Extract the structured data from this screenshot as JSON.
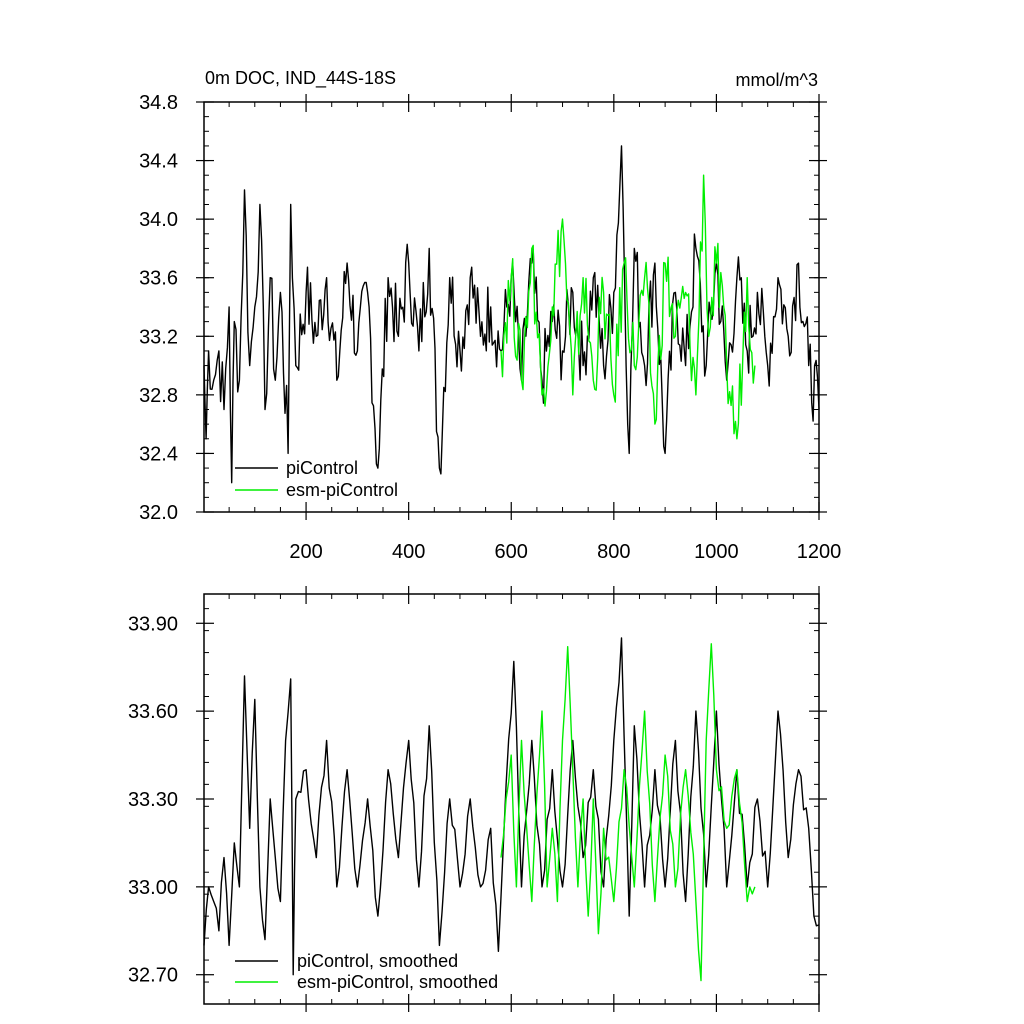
{
  "chart_data": [
    {
      "type": "line",
      "title": "0m DOC, IND_44S-18S",
      "units": "mmol/m^3",
      "xlim": [
        1,
        1200
      ],
      "ylim": [
        32.0,
        34.8
      ],
      "x_ticks": [
        200,
        400,
        600,
        800,
        1000,
        1200
      ],
      "y_ticks": [
        32.0,
        32.4,
        32.8,
        33.2,
        33.6,
        34.0,
        34.4,
        34.8
      ],
      "y_tick_labels": [
        "32.0",
        "32.4",
        "32.8",
        "33.2",
        "33.6",
        "34.0",
        "34.4",
        "34.8"
      ],
      "legend_position": "bottom-left",
      "series": [
        {
          "name": "piControl",
          "color": "#000000",
          "x_range": [
            1,
            1200
          ],
          "points": [
            [
              1,
              33.0
            ],
            [
              5,
              32.5
            ],
            [
              10,
              33.1
            ],
            [
              20,
              32.9
            ],
            [
              30,
              33.1
            ],
            [
              40,
              32.7
            ],
            [
              50,
              33.4
            ],
            [
              55,
              32.2
            ],
            [
              60,
              33.3
            ],
            [
              70,
              32.9
            ],
            [
              80,
              34.2
            ],
            [
              90,
              33.0
            ],
            [
              100,
              33.4
            ],
            [
              110,
              34.1
            ],
            [
              120,
              32.7
            ],
            [
              130,
              33.6
            ],
            [
              140,
              32.9
            ],
            [
              150,
              33.5
            ],
            [
              165,
              32.4
            ],
            [
              170,
              34.1
            ],
            [
              180,
              33.0
            ],
            [
              200,
              33.5
            ],
            [
              220,
              33.2
            ],
            [
              240,
              33.6
            ],
            [
              260,
              32.9
            ],
            [
              280,
              33.7
            ],
            [
              300,
              33.1
            ],
            [
              320,
              33.5
            ],
            [
              340,
              32.3
            ],
            [
              360,
              33.6
            ],
            [
              380,
              33.2
            ],
            [
              400,
              33.7
            ],
            [
              420,
              33.1
            ],
            [
              440,
              33.8
            ],
            [
              460,
              32.3
            ],
            [
              480,
              33.6
            ],
            [
              500,
              33.1
            ],
            [
              520,
              33.6
            ],
            [
              540,
              33.2
            ],
            [
              560,
              33.4
            ],
            [
              580,
              33.1
            ],
            [
              600,
              33.6
            ],
            [
              620,
              32.9
            ],
            [
              640,
              33.7
            ],
            [
              660,
              32.9
            ],
            [
              680,
              33.3
            ],
            [
              700,
              33.1
            ],
            [
              720,
              33.5
            ],
            [
              740,
              33.0
            ],
            [
              760,
              33.6
            ],
            [
              780,
              33.0
            ],
            [
              800,
              33.5
            ],
            [
              815,
              34.5
            ],
            [
              830,
              32.4
            ],
            [
              840,
              33.8
            ],
            [
              860,
              33.0
            ],
            [
              880,
              33.7
            ],
            [
              900,
              32.4
            ],
            [
              920,
              33.5
            ],
            [
              940,
              33.0
            ],
            [
              960,
              33.8
            ],
            [
              980,
              33.0
            ],
            [
              1000,
              33.7
            ],
            [
              1020,
              32.9
            ],
            [
              1040,
              33.6
            ],
            [
              1060,
              33.1
            ],
            [
              1080,
              33.5
            ],
            [
              1100,
              33.0
            ],
            [
              1120,
              33.6
            ],
            [
              1140,
              33.2
            ],
            [
              1160,
              33.7
            ],
            [
              1180,
              33.0
            ],
            [
              1200,
              32.7
            ]
          ]
        },
        {
          "name": "esm-piControl",
          "color": "#00ee00",
          "x_range": [
            580,
            1075
          ],
          "points": [
            [
              580,
              33.1
            ],
            [
              600,
              33.6
            ],
            [
              620,
              32.9
            ],
            [
              640,
              33.8
            ],
            [
              660,
              32.8
            ],
            [
              680,
              33.4
            ],
            [
              700,
              34.0
            ],
            [
              720,
              32.8
            ],
            [
              740,
              33.6
            ],
            [
              760,
              32.9
            ],
            [
              780,
              33.5
            ],
            [
              800,
              32.8
            ],
            [
              820,
              33.7
            ],
            [
              840,
              33.0
            ],
            [
              860,
              33.6
            ],
            [
              880,
              32.6
            ],
            [
              900,
              33.7
            ],
            [
              920,
              33.2
            ],
            [
              940,
              33.5
            ],
            [
              960,
              32.8
            ],
            [
              975,
              34.3
            ],
            [
              985,
              33.2
            ],
            [
              1000,
              33.7
            ],
            [
              1020,
              33.0
            ],
            [
              1040,
              32.5
            ],
            [
              1060,
              33.6
            ],
            [
              1075,
              33.0
            ]
          ]
        }
      ]
    },
    {
      "type": "line",
      "title": "",
      "xlim": [
        1,
        1200
      ],
      "ylim": [
        32.6,
        34.0
      ],
      "x_ticks": [
        200,
        400,
        600,
        800,
        1000,
        1200
      ],
      "y_ticks": [
        32.7,
        33.0,
        33.3,
        33.6,
        33.9
      ],
      "y_tick_labels": [
        "32.70",
        "33.00",
        "33.30",
        "33.60",
        "33.90"
      ],
      "legend_position": "bottom-left",
      "series": [
        {
          "name": "piControl, smoothed",
          "color": "#000000",
          "points": [
            [
              1,
              32.8
            ],
            [
              10,
              33.0
            ],
            [
              20,
              32.95
            ],
            [
              30,
              32.85
            ],
            [
              40,
              33.1
            ],
            [
              50,
              32.8
            ],
            [
              60,
              33.15
            ],
            [
              70,
              33.0
            ],
            [
              80,
              33.72
            ],
            [
              90,
              33.2
            ],
            [
              100,
              33.64
            ],
            [
              110,
              33.0
            ],
            [
              120,
              32.82
            ],
            [
              130,
              33.3
            ],
            [
              140,
              33.1
            ],
            [
              150,
              32.95
            ],
            [
              160,
              33.5
            ],
            [
              170,
              33.71
            ],
            [
              175,
              32.7
            ],
            [
              180,
              33.3
            ],
            [
              200,
              33.4
            ],
            [
              220,
              33.1
            ],
            [
              240,
              33.5
            ],
            [
              260,
              33.0
            ],
            [
              280,
              33.4
            ],
            [
              300,
              33.0
            ],
            [
              320,
              33.3
            ],
            [
              340,
              32.9
            ],
            [
              360,
              33.4
            ],
            [
              380,
              33.1
            ],
            [
              400,
              33.5
            ],
            [
              420,
              33.0
            ],
            [
              440,
              33.55
            ],
            [
              460,
              32.8
            ],
            [
              480,
              33.3
            ],
            [
              500,
              33.0
            ],
            [
              520,
              33.3
            ],
            [
              540,
              33.0
            ],
            [
              560,
              33.2
            ],
            [
              575,
              32.78
            ],
            [
              590,
              33.35
            ],
            [
              605,
              33.77
            ],
            [
              620,
              33.0
            ],
            [
              640,
              33.5
            ],
            [
              660,
              33.0
            ],
            [
              680,
              33.4
            ],
            [
              700,
              33.0
            ],
            [
              720,
              33.5
            ],
            [
              740,
              33.1
            ],
            [
              760,
              33.4
            ],
            [
              780,
              33.0
            ],
            [
              800,
              33.5
            ],
            [
              815,
              33.85
            ],
            [
              830,
              32.9
            ],
            [
              840,
              33.55
            ],
            [
              860,
              33.0
            ],
            [
              880,
              33.4
            ],
            [
              900,
              33.0
            ],
            [
              920,
              33.5
            ],
            [
              940,
              32.95
            ],
            [
              960,
              33.6
            ],
            [
              980,
              33.0
            ],
            [
              1000,
              33.6
            ],
            [
              1020,
              33.0
            ],
            [
              1040,
              33.4
            ],
            [
              1060,
              33.0
            ],
            [
              1080,
              33.3
            ],
            [
              1100,
              33.0
            ],
            [
              1120,
              33.6
            ],
            [
              1140,
              33.1
            ],
            [
              1160,
              33.4
            ],
            [
              1180,
              33.2
            ],
            [
              1190,
              32.9
            ],
            [
              1200,
              32.87
            ]
          ]
        },
        {
          "name": "esm-piControl, smoothed",
          "color": "#00ee00",
          "points": [
            [
              580,
              33.1
            ],
            [
              590,
              33.3
            ],
            [
              600,
              33.45
            ],
            [
              610,
              33.0
            ],
            [
              620,
              33.5
            ],
            [
              640,
              32.95
            ],
            [
              660,
              33.6
            ],
            [
              670,
              33.0
            ],
            [
              680,
              33.2
            ],
            [
              690,
              32.95
            ],
            [
              700,
              33.5
            ],
            [
              710,
              33.82
            ],
            [
              720,
              33.4
            ],
            [
              730,
              33.0
            ],
            [
              740,
              33.3
            ],
            [
              750,
              32.9
            ],
            [
              760,
              33.3
            ],
            [
              770,
              32.84
            ],
            [
              780,
              33.2
            ],
            [
              800,
              32.95
            ],
            [
              820,
              33.4
            ],
            [
              840,
              33.0
            ],
            [
              860,
              33.6
            ],
            [
              880,
              32.95
            ],
            [
              900,
              33.45
            ],
            [
              920,
              33.0
            ],
            [
              940,
              33.4
            ],
            [
              960,
              32.95
            ],
            [
              970,
              32.68
            ],
            [
              980,
              33.5
            ],
            [
              990,
              33.83
            ],
            [
              1000,
              33.4
            ],
            [
              1020,
              33.2
            ],
            [
              1040,
              33.4
            ],
            [
              1060,
              32.95
            ],
            [
              1075,
              33.0
            ]
          ]
        }
      ]
    }
  ]
}
